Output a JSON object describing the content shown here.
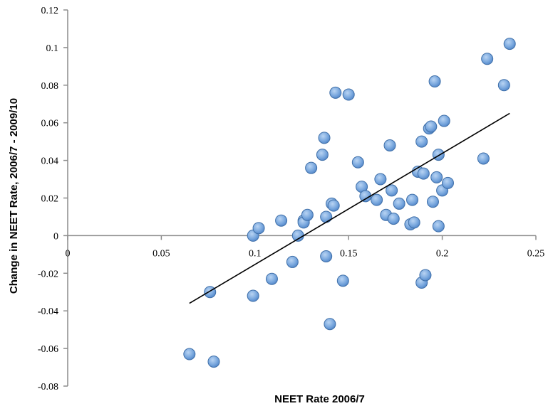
{
  "chart_data": {
    "type": "scatter",
    "title": "",
    "xlabel": "NEET Rate 2006/7",
    "ylabel": "Change in NEET Rate, 2006/7 - 2009/10",
    "xlim": [
      0,
      0.25
    ],
    "ylim": [
      -0.08,
      0.12
    ],
    "x_ticks": [
      "0",
      "0.05",
      "0.1",
      "0.15",
      "0.2",
      "0.25"
    ],
    "y_ticks": [
      "0.12",
      "0.1",
      "0.08",
      "0.06",
      "0.04",
      "0.02",
      "0",
      "-0.02",
      "-0.04",
      "-0.06",
      "-0.08"
    ],
    "x_tick_values": [
      0,
      0.05,
      0.1,
      0.15,
      0.2,
      0.25
    ],
    "y_tick_values": [
      0.12,
      0.1,
      0.08,
      0.06,
      0.04,
      0.02,
      0,
      -0.02,
      -0.04,
      -0.06,
      -0.08
    ],
    "marker_color": "#6f9fd8",
    "trendline": {
      "x": [
        0.065,
        0.236
      ],
      "y": [
        -0.036,
        0.065
      ]
    },
    "points": [
      {
        "x": 0.065,
        "y": -0.063
      },
      {
        "x": 0.076,
        "y": -0.03
      },
      {
        "x": 0.078,
        "y": -0.067
      },
      {
        "x": 0.099,
        "y": 0.0
      },
      {
        "x": 0.099,
        "y": -0.032
      },
      {
        "x": 0.102,
        "y": 0.004
      },
      {
        "x": 0.109,
        "y": -0.023
      },
      {
        "x": 0.114,
        "y": 0.008
      },
      {
        "x": 0.12,
        "y": -0.014
      },
      {
        "x": 0.123,
        "y": 0.0
      },
      {
        "x": 0.126,
        "y": 0.008
      },
      {
        "x": 0.126,
        "y": 0.007
      },
      {
        "x": 0.128,
        "y": 0.011
      },
      {
        "x": 0.13,
        "y": 0.036
      },
      {
        "x": 0.136,
        "y": 0.043
      },
      {
        "x": 0.137,
        "y": 0.052
      },
      {
        "x": 0.138,
        "y": 0.01
      },
      {
        "x": 0.138,
        "y": -0.011
      },
      {
        "x": 0.14,
        "y": -0.047
      },
      {
        "x": 0.141,
        "y": 0.017
      },
      {
        "x": 0.142,
        "y": 0.016
      },
      {
        "x": 0.143,
        "y": 0.076
      },
      {
        "x": 0.147,
        "y": -0.024
      },
      {
        "x": 0.15,
        "y": 0.075
      },
      {
        "x": 0.155,
        "y": 0.039
      },
      {
        "x": 0.157,
        "y": 0.026
      },
      {
        "x": 0.159,
        "y": 0.021
      },
      {
        "x": 0.165,
        "y": 0.019
      },
      {
        "x": 0.167,
        "y": 0.03
      },
      {
        "x": 0.17,
        "y": 0.011
      },
      {
        "x": 0.172,
        "y": 0.048
      },
      {
        "x": 0.173,
        "y": 0.024
      },
      {
        "x": 0.174,
        "y": 0.009
      },
      {
        "x": 0.177,
        "y": 0.017
      },
      {
        "x": 0.183,
        "y": 0.006
      },
      {
        "x": 0.184,
        "y": 0.019
      },
      {
        "x": 0.185,
        "y": 0.007
      },
      {
        "x": 0.187,
        "y": 0.034
      },
      {
        "x": 0.189,
        "y": 0.05
      },
      {
        "x": 0.189,
        "y": -0.025
      },
      {
        "x": 0.19,
        "y": 0.033
      },
      {
        "x": 0.191,
        "y": -0.021
      },
      {
        "x": 0.193,
        "y": 0.057
      },
      {
        "x": 0.194,
        "y": 0.058
      },
      {
        "x": 0.195,
        "y": 0.018
      },
      {
        "x": 0.196,
        "y": 0.082
      },
      {
        "x": 0.197,
        "y": 0.031
      },
      {
        "x": 0.198,
        "y": 0.043
      },
      {
        "x": 0.198,
        "y": 0.005
      },
      {
        "x": 0.2,
        "y": 0.024
      },
      {
        "x": 0.201,
        "y": 0.061
      },
      {
        "x": 0.203,
        "y": 0.028
      },
      {
        "x": 0.222,
        "y": 0.041
      },
      {
        "x": 0.224,
        "y": 0.094
      },
      {
        "x": 0.233,
        "y": 0.08
      },
      {
        "x": 0.236,
        "y": 0.102
      }
    ]
  }
}
